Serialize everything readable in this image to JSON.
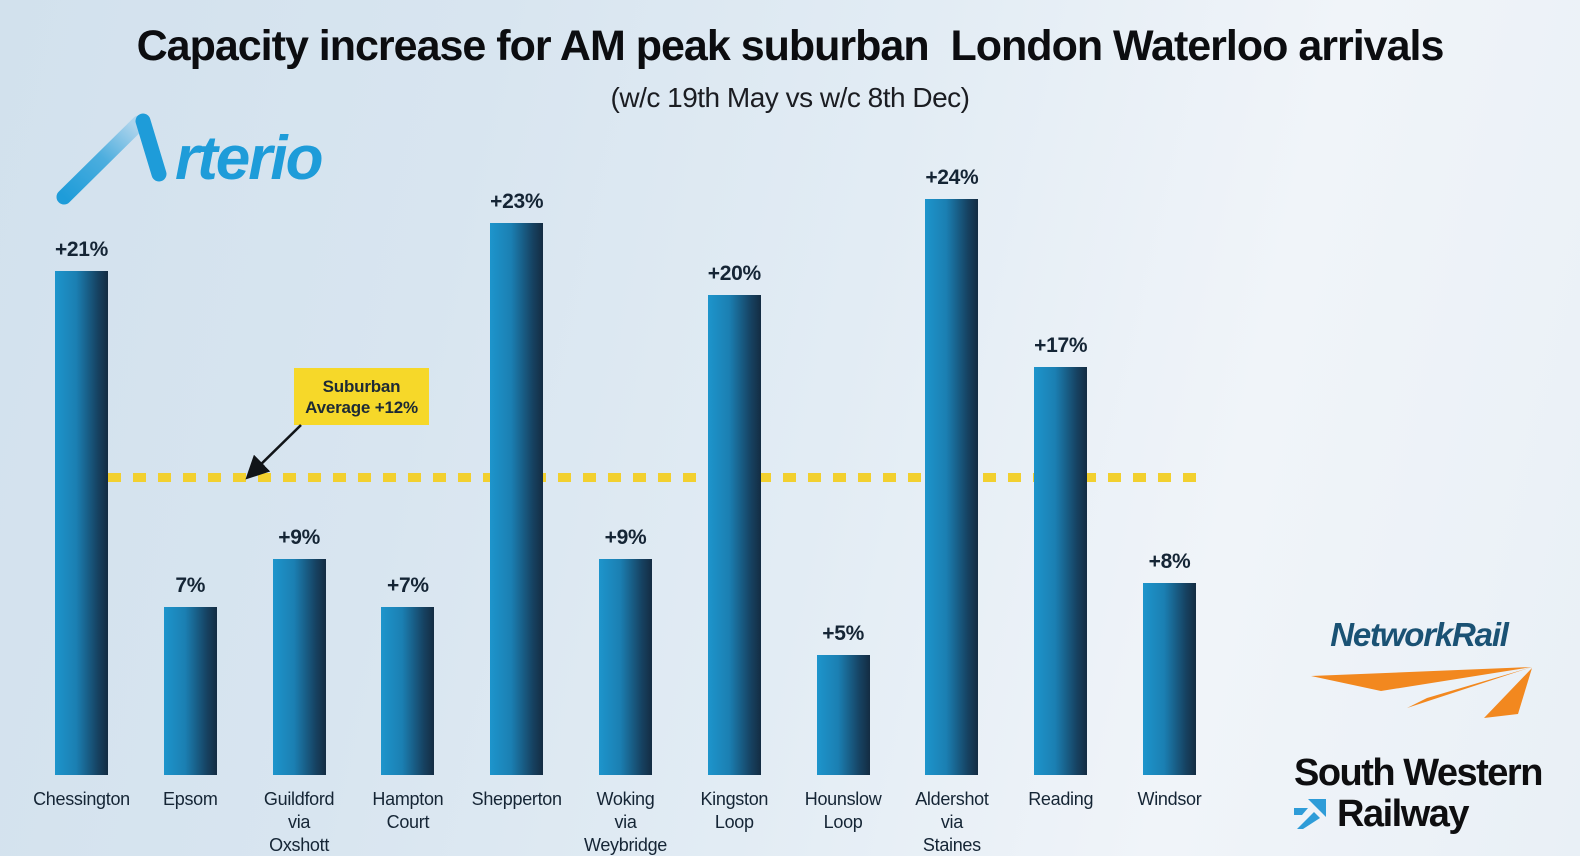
{
  "title": "Capacity increase for AM peak suburban  London Waterloo arrivals",
  "subtitle": "(w/c 19th May vs w/c 8th Dec)",
  "logos": {
    "arterio_wordmark_text": "rterio",
    "arterio_blue": "#1e9cd9",
    "network_rail_text": "NetworkRail",
    "network_rail_blue": "#1a5274",
    "network_rail_orange": "#f2881f",
    "swr_line1": "South Western",
    "swr_line2": "Railway",
    "swr_arrow_blue": "#2e9cd8"
  },
  "annotation": {
    "line1": "Suburban",
    "line2": "Average +12%",
    "box_color": "#f6d829"
  },
  "chart_data": {
    "type": "bar",
    "categories": [
      "Chessington",
      "Epsom",
      "Guildford\nvia\nOxshott",
      "Hampton\nCourt",
      "Shepperton",
      "Woking\nvia\nWeybridge",
      "Kingston\nLoop",
      "Hounslow\nLoop",
      "Aldershot\nvia\nStaines",
      "Reading",
      "Windsor"
    ],
    "values": [
      21,
      7,
      9,
      7,
      23,
      9,
      20,
      5,
      24,
      17,
      8
    ],
    "value_labels": [
      "+21%",
      "7%",
      "+9%",
      "+7%",
      "+23%",
      "+9%",
      "+20%",
      "+5%",
      "+24%",
      "+17%",
      "+8%"
    ],
    "title": "Capacity increase for AM peak suburban  London Waterloo arrivals",
    "subtitle": "(w/c 19th May vs w/c 8th Dec)",
    "xlabel": "",
    "ylabel": "",
    "ylim": [
      0,
      26
    ],
    "grid": false,
    "legend": "none",
    "reference_line": {
      "label": "Suburban Average +12%",
      "value": 12,
      "style": "dashed",
      "color": "#f2d02f"
    },
    "bar_gradient": [
      "#1d95cc",
      "#142c42"
    ]
  }
}
